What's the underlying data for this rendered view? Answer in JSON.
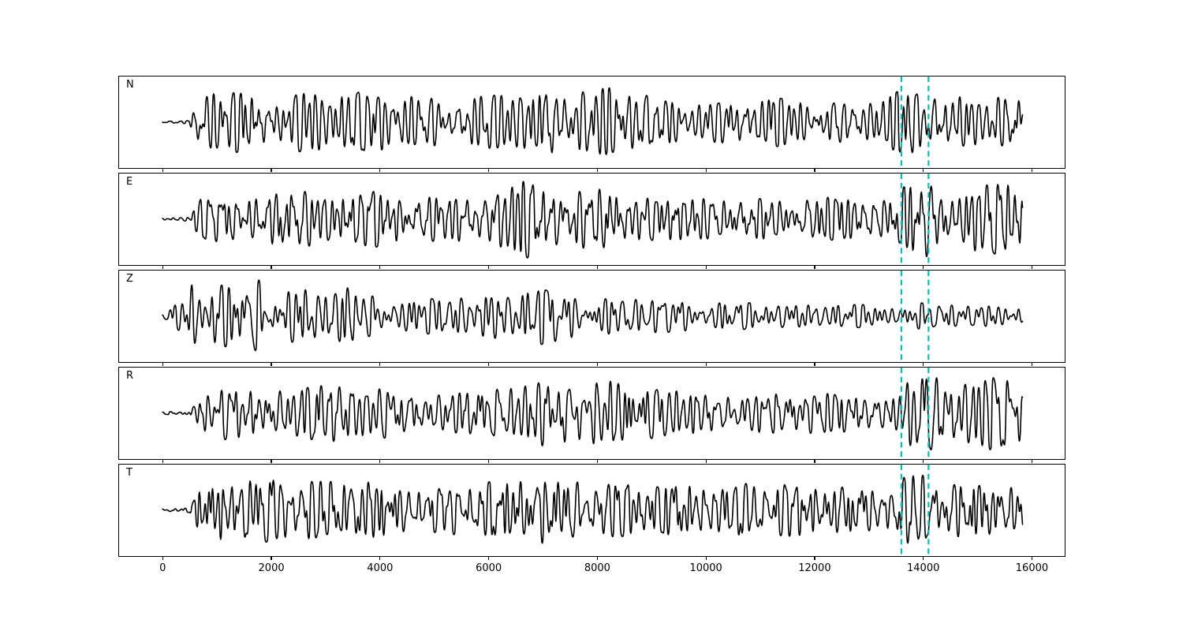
{
  "figure": {
    "background": "#ffffff",
    "title": ""
  },
  "chart_data": {
    "type": "line",
    "kind": "multi-panel seismogram waveform plot",
    "title": "",
    "xlabel": "",
    "ylabel": "",
    "grid": false,
    "legend": null,
    "xlim": [
      -800,
      16600
    ],
    "x_ticks": [
      0,
      2000,
      4000,
      6000,
      8000,
      10000,
      12000,
      14000,
      16000
    ],
    "x_tick_labels": [
      "0",
      "2000",
      "4000",
      "6000",
      "8000",
      "10000",
      "12000",
      "14000",
      "16000"
    ],
    "trace_color": "#000000",
    "pick_lines": {
      "x_values": [
        13600,
        14100
      ],
      "color": "#00bfbf",
      "style": "dashed"
    },
    "series_note": "Each panel is a seismic waveform trace (black). Values are amplitude envelopes (fraction of panel half-height) at sample x positions; oscillation dominant period ~90-430 x-units.",
    "channels": [
      {
        "label": "N",
        "seed": 101,
        "data_start": 0,
        "data_end": 15830,
        "envelope": [
          [
            0,
            0.03
          ],
          [
            480,
            0.04
          ],
          [
            650,
            0.55
          ],
          [
            900,
            0.75
          ],
          [
            2000,
            0.7
          ],
          [
            3400,
            0.8
          ],
          [
            4500,
            0.65
          ],
          [
            5500,
            0.6
          ],
          [
            6500,
            0.7
          ],
          [
            7400,
            1.0
          ],
          [
            7800,
            0.8
          ],
          [
            8300,
            0.85
          ],
          [
            9200,
            0.6
          ],
          [
            10000,
            0.5
          ],
          [
            11000,
            0.6
          ],
          [
            12000,
            0.55
          ],
          [
            13000,
            0.5
          ],
          [
            13800,
            0.85
          ],
          [
            14300,
            0.7
          ],
          [
            15000,
            0.65
          ],
          [
            15830,
            0.6
          ]
        ]
      },
      {
        "label": "E",
        "seed": 202,
        "data_start": 0,
        "data_end": 15830,
        "envelope": [
          [
            0,
            0.03
          ],
          [
            500,
            0.05
          ],
          [
            700,
            0.5
          ],
          [
            1500,
            0.65
          ],
          [
            2200,
            0.75
          ],
          [
            3200,
            0.6
          ],
          [
            4200,
            0.7
          ],
          [
            5200,
            0.55
          ],
          [
            6000,
            0.6
          ],
          [
            6700,
            0.95
          ],
          [
            7300,
            0.7
          ],
          [
            8200,
            0.8
          ],
          [
            9000,
            0.55
          ],
          [
            10500,
            0.5
          ],
          [
            12000,
            0.55
          ],
          [
            13200,
            0.45
          ],
          [
            13800,
            0.9
          ],
          [
            14100,
            1.0
          ],
          [
            14600,
            0.8
          ],
          [
            15200,
            0.85
          ],
          [
            15830,
            0.95
          ]
        ]
      },
      {
        "label": "Z",
        "seed": 303,
        "data_start": 0,
        "data_end": 15830,
        "envelope": [
          [
            0,
            0.04
          ],
          [
            420,
            0.5
          ],
          [
            560,
            1.0
          ],
          [
            900,
            0.85
          ],
          [
            1300,
            0.7
          ],
          [
            1800,
            0.9
          ],
          [
            2300,
            0.65
          ],
          [
            2700,
            0.7
          ],
          [
            3100,
            0.55
          ],
          [
            3450,
            0.8
          ],
          [
            3800,
            0.5
          ],
          [
            4800,
            0.42
          ],
          [
            6000,
            0.55
          ],
          [
            6700,
            0.7
          ],
          [
            7300,
            0.65
          ],
          [
            8000,
            0.45
          ],
          [
            9000,
            0.42
          ],
          [
            10000,
            0.35
          ],
          [
            11500,
            0.3
          ],
          [
            13000,
            0.28
          ],
          [
            14000,
            0.32
          ],
          [
            15000,
            0.25
          ],
          [
            15830,
            0.33
          ]
        ]
      },
      {
        "label": "R",
        "seed": 404,
        "data_start": 0,
        "data_end": 15830,
        "envelope": [
          [
            0,
            0.03
          ],
          [
            500,
            0.05
          ],
          [
            700,
            0.55
          ],
          [
            1200,
            0.7
          ],
          [
            2300,
            0.6
          ],
          [
            3400,
            0.75
          ],
          [
            4200,
            0.6
          ],
          [
            5200,
            0.5
          ],
          [
            6200,
            0.6
          ],
          [
            7100,
            0.85
          ],
          [
            7800,
            0.9
          ],
          [
            8600,
            0.75
          ],
          [
            9500,
            0.55
          ],
          [
            10800,
            0.5
          ],
          [
            12000,
            0.5
          ],
          [
            13200,
            0.45
          ],
          [
            13800,
            0.9
          ],
          [
            14100,
            1.0
          ],
          [
            14700,
            0.75
          ],
          [
            15300,
            0.9
          ],
          [
            15830,
            0.85
          ]
        ]
      },
      {
        "label": "T",
        "seed": 505,
        "data_start": 0,
        "data_end": 15830,
        "envelope": [
          [
            0,
            0.03
          ],
          [
            500,
            0.06
          ],
          [
            700,
            0.6
          ],
          [
            1100,
            0.85
          ],
          [
            2000,
            0.85
          ],
          [
            3000,
            0.7
          ],
          [
            3900,
            0.75
          ],
          [
            5000,
            0.55
          ],
          [
            6100,
            0.7
          ],
          [
            7000,
            0.85
          ],
          [
            7900,
            0.7
          ],
          [
            8800,
            0.65
          ],
          [
            10000,
            0.65
          ],
          [
            11000,
            0.7
          ],
          [
            12200,
            0.6
          ],
          [
            13200,
            0.55
          ],
          [
            13800,
            0.95
          ],
          [
            14400,
            0.65
          ],
          [
            15000,
            0.7
          ],
          [
            15830,
            0.55
          ]
        ]
      }
    ]
  }
}
